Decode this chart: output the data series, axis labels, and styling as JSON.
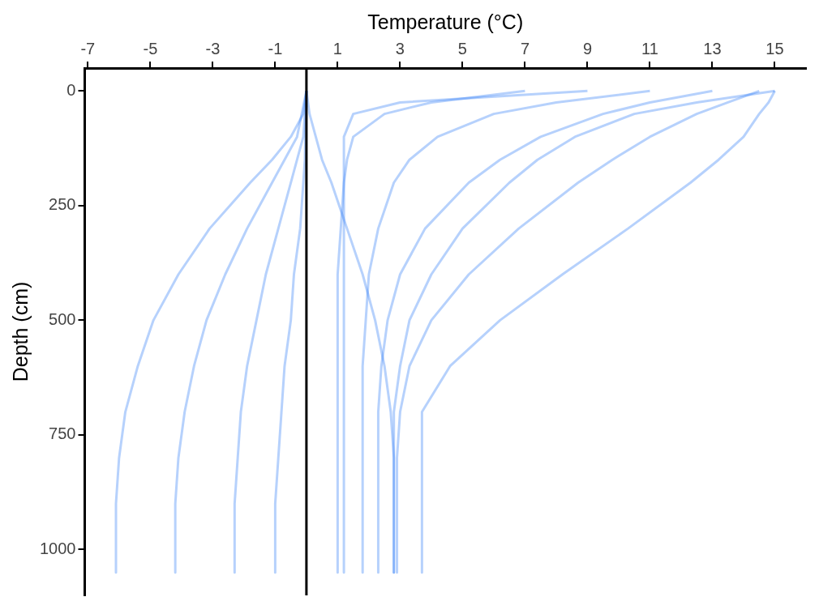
{
  "chart_data": {
    "type": "line",
    "xlabel": "Temperature (°C)",
    "ylabel": "Depth (cm)",
    "xlim": [
      -7.1,
      16
    ],
    "ylim": [
      1100,
      -50
    ],
    "xticks": [
      -7,
      -5,
      -3,
      -1,
      1,
      3,
      5,
      7,
      9,
      11,
      13,
      15
    ],
    "yticks": [
      0,
      250,
      500,
      750,
      1000
    ],
    "grid": false,
    "legend": false,
    "marker": "none",
    "line_style": "solid",
    "ref_lines": [
      {
        "axis": "x",
        "value": 0,
        "color": "#000000"
      }
    ],
    "series": [
      {
        "color": "#2f7bf5",
        "x": [
          15.0,
          14.8,
          14.5,
          14.0,
          13.2,
          12.3,
          10.3,
          8.2,
          6.2,
          4.6,
          3.7,
          3.7
        ],
        "values": [
          0,
          25,
          50,
          100,
          150,
          200,
          300,
          400,
          500,
          600,
          700,
          1050
        ]
      },
      {
        "color": "#2f7bf5",
        "x": [
          15.0,
          12.5,
          10.5,
          8.6,
          7.4,
          6.5,
          5.0,
          4.0,
          3.3,
          3.0,
          2.8,
          2.8
        ],
        "values": [
          0,
          25,
          50,
          100,
          150,
          200,
          300,
          400,
          500,
          600,
          700,
          1050
        ]
      },
      {
        "color": "#2f7bf5",
        "x": [
          14.5,
          13.5,
          12.5,
          11.0,
          9.8,
          8.7,
          6.8,
          5.2,
          4.0,
          3.3,
          3.0,
          2.9,
          2.9
        ],
        "values": [
          0,
          25,
          50,
          100,
          150,
          200,
          300,
          400,
          500,
          600,
          700,
          800,
          1050
        ]
      },
      {
        "color": "#2f7bf5",
        "x": [
          13.0,
          11.0,
          9.5,
          7.5,
          6.2,
          5.2,
          3.8,
          3.0,
          2.6,
          2.4,
          2.3,
          2.3
        ],
        "values": [
          0,
          25,
          50,
          100,
          150,
          200,
          300,
          400,
          500,
          600,
          700,
          1050
        ]
      },
      {
        "color": "#2f7bf5",
        "x": [
          11.0,
          8.0,
          6.0,
          4.2,
          3.3,
          2.8,
          2.3,
          2.0,
          1.9,
          1.8,
          1.8
        ],
        "values": [
          0,
          25,
          50,
          100,
          150,
          200,
          300,
          400,
          500,
          600,
          1050
        ]
      },
      {
        "color": "#2f7bf5",
        "x": [
          9.0,
          3.0,
          1.5,
          1.2,
          1.2
        ],
        "values": [
          0,
          25,
          50,
          100,
          1050
        ]
      },
      {
        "color": "#2f7bf5",
        "x": [
          7.0,
          4.0,
          2.5,
          1.5,
          1.3,
          1.2,
          1.1,
          1.0,
          1.0
        ],
        "values": [
          0,
          25,
          50,
          100,
          150,
          200,
          300,
          400,
          1050
        ]
      },
      {
        "color": "#2f7bf5",
        "x": [
          0.0,
          0.1,
          0.3,
          0.5,
          0.8,
          1.3,
          1.8,
          2.2,
          2.5,
          2.7,
          2.8,
          2.8
        ],
        "values": [
          0,
          50,
          100,
          150,
          200,
          300,
          400,
          500,
          600,
          700,
          800,
          1050
        ]
      },
      {
        "color": "#2f7bf5",
        "x": [
          0.0,
          -0.05,
          -0.1,
          -0.2,
          -0.4,
          -0.5,
          -0.7,
          -0.8,
          -0.9,
          -1.0,
          -1.0
        ],
        "values": [
          0,
          150,
          200,
          300,
          400,
          500,
          600,
          700,
          800,
          900,
          1050
        ]
      },
      {
        "color": "#2f7bf5",
        "x": [
          0.0,
          -0.1,
          -0.3,
          -0.5,
          -0.9,
          -1.3,
          -1.6,
          -1.9,
          -2.1,
          -2.2,
          -2.3,
          -2.3
        ],
        "values": [
          0,
          100,
          150,
          200,
          300,
          400,
          500,
          600,
          700,
          800,
          900,
          1050
        ]
      },
      {
        "color": "#2f7bf5",
        "x": [
          0.0,
          -0.3,
          -0.7,
          -1.1,
          -1.9,
          -2.6,
          -3.2,
          -3.6,
          -3.9,
          -4.1,
          -4.2,
          -4.2
        ],
        "values": [
          0,
          100,
          150,
          200,
          300,
          400,
          500,
          600,
          700,
          800,
          900,
          1050
        ]
      },
      {
        "color": "#2f7bf5",
        "x": [
          0.0,
          -0.1,
          -0.5,
          -1.1,
          -1.8,
          -3.1,
          -4.1,
          -4.9,
          -5.4,
          -5.8,
          -6.0,
          -6.1,
          -6.1
        ],
        "values": [
          0,
          50,
          100,
          150,
          200,
          300,
          400,
          500,
          600,
          700,
          800,
          900,
          1050
        ]
      }
    ]
  }
}
